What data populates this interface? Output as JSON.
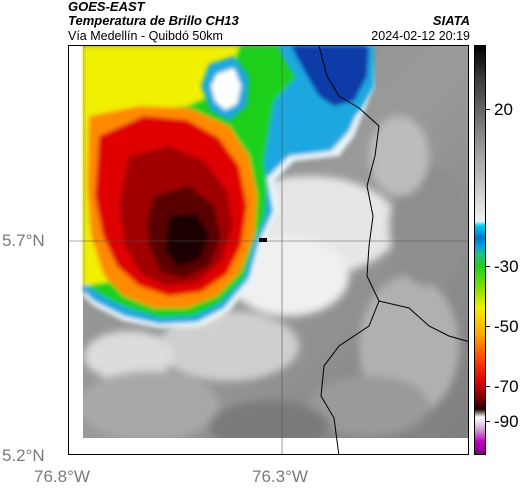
{
  "header": {
    "satellite": "GOES-EAST",
    "product": "Temperatura de Brillo CH13",
    "area": "Vía Medellín - Quibdó 50km",
    "organization": "SIATA",
    "timestamp": "2024-02-12 20:19"
  },
  "map": {
    "latitude_labels": [
      "5.7°N",
      "5.2°N"
    ],
    "longitude_labels": [
      "76.8°W",
      "76.3°W"
    ],
    "gridlines": "on"
  },
  "colorbar": {
    "tick_labels": [
      "20",
      "-30",
      "-50",
      "-70",
      "-90"
    ],
    "colors": {
      "warm_gray_top": "#1a1a1a",
      "cyan": "#00c8e8",
      "green": "#1fd01f",
      "yellow": "#f0f000",
      "orange": "#ff8a00",
      "red": "#e00000",
      "dark_red": "#5a0000",
      "magenta": "#c000c0"
    }
  }
}
